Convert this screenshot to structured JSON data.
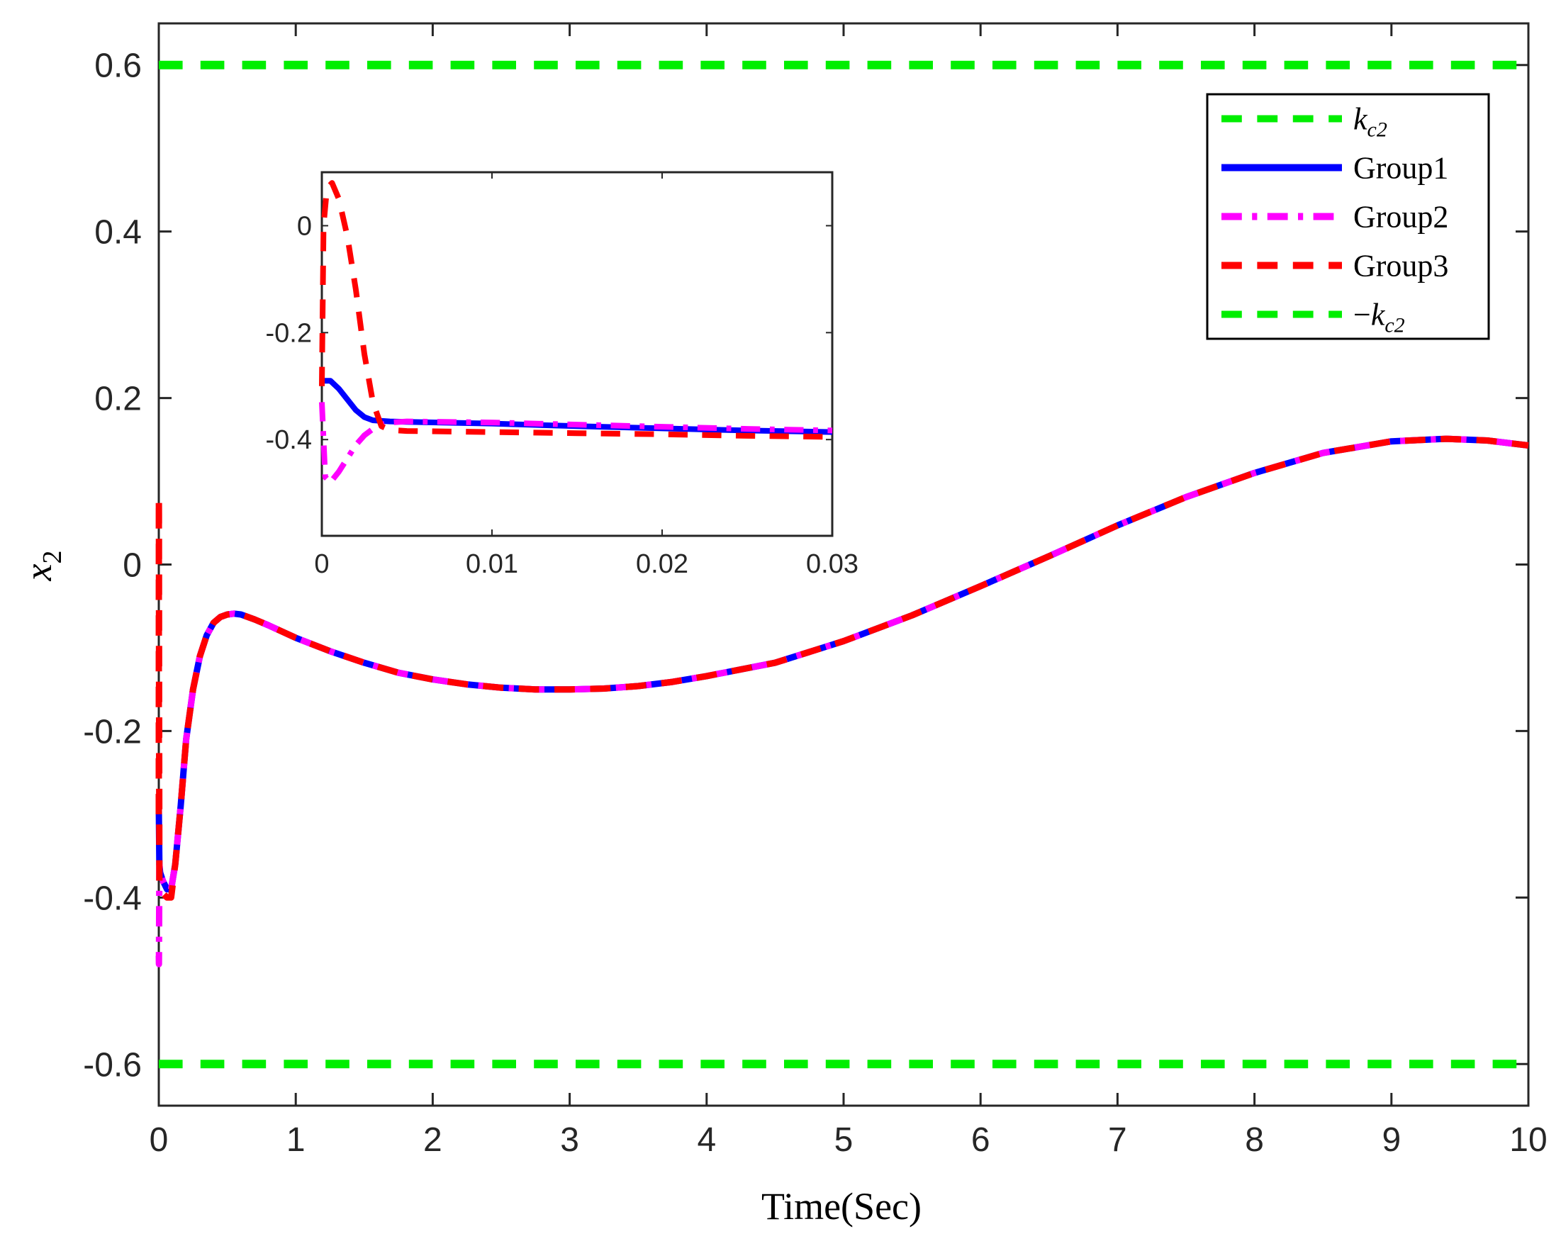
{
  "chart_data": {
    "type": "line",
    "main": {
      "xlabel": "Time(Sec)",
      "ylabel": "x2",
      "xlim": [
        0,
        10
      ],
      "ylim": [
        -0.65,
        0.65
      ],
      "xticks": [
        0,
        1,
        2,
        3,
        4,
        5,
        6,
        7,
        8,
        9,
        10
      ],
      "xtick_labels": [
        "0",
        "1",
        "2",
        "3",
        "4",
        "5",
        "6",
        "7",
        "8",
        "9",
        "10"
      ],
      "yticks": [
        0.6,
        0.4,
        0.2,
        0,
        -0.2,
        -0.4,
        -0.6
      ],
      "ytick_labels": [
        "0.6",
        "0.4",
        "0.2",
        "0",
        "-0.2",
        "-0.4",
        "-0.6"
      ],
      "grid": false,
      "legend_position": "top-right",
      "bounds": [
        {
          "name": "k_c2",
          "value": 0.6,
          "color": "#00ee00",
          "style": "dashed"
        },
        {
          "name": "-k_c2",
          "value": -0.6,
          "color": "#00ee00",
          "style": "dashed"
        }
      ],
      "series": [
        {
          "name": "Group1",
          "color": "#0000ff",
          "style": "solid",
          "x": [
            0,
            0.004,
            0.01,
            0.03,
            0.06,
            0.09,
            0.12,
            0.16,
            0.2,
            0.25,
            0.3,
            0.35,
            0.4,
            0.45,
            0.5,
            0.55,
            0.6,
            0.65,
            0.7,
            0.8,
            1.0,
            1.25,
            1.5,
            1.75,
            2.0,
            2.25,
            2.5,
            2.75,
            3.0,
            3.25,
            3.5,
            3.75,
            4.0,
            4.5,
            5.0,
            5.5,
            6.0,
            6.5,
            7.0,
            7.5,
            8.0,
            8.5,
            9.0,
            9.4,
            9.7,
            10.0
          ],
          "y": [
            -0.29,
            -0.36,
            -0.37,
            -0.38,
            -0.39,
            -0.39,
            -0.36,
            -0.29,
            -0.21,
            -0.15,
            -0.11,
            -0.085,
            -0.07,
            -0.063,
            -0.06,
            -0.059,
            -0.06,
            -0.063,
            -0.066,
            -0.073,
            -0.088,
            -0.104,
            -0.118,
            -0.13,
            -0.138,
            -0.144,
            -0.148,
            -0.15,
            -0.15,
            -0.149,
            -0.146,
            -0.141,
            -0.134,
            -0.118,
            -0.092,
            -0.061,
            -0.026,
            0.01,
            0.047,
            0.081,
            0.11,
            0.134,
            0.148,
            0.151,
            0.149,
            0.143
          ]
        },
        {
          "name": "Group2",
          "color": "#ff00ff",
          "style": "dash-dot",
          "x": [
            0,
            0.001,
            0.004,
            0.01,
            0.03,
            0.06,
            0.09,
            0.12,
            0.16,
            0.2,
            0.25,
            0.3,
            0.35,
            0.4,
            0.45,
            0.5,
            0.55,
            0.6,
            0.65,
            0.7,
            0.8,
            1.0,
            1.25,
            1.5,
            1.75,
            2.0,
            2.25,
            2.5,
            2.75,
            3.0,
            3.25,
            3.5,
            3.75,
            4.0,
            4.5,
            5.0,
            5.5,
            6.0,
            6.5,
            7.0,
            7.5,
            8.0,
            8.5,
            9.0,
            9.4,
            9.7,
            10.0
          ],
          "y": [
            -0.47,
            -0.48,
            -0.36,
            -0.37,
            -0.38,
            -0.39,
            -0.39,
            -0.36,
            -0.29,
            -0.21,
            -0.15,
            -0.11,
            -0.085,
            -0.07,
            -0.063,
            -0.06,
            -0.059,
            -0.06,
            -0.063,
            -0.066,
            -0.073,
            -0.088,
            -0.104,
            -0.118,
            -0.13,
            -0.138,
            -0.144,
            -0.148,
            -0.15,
            -0.15,
            -0.149,
            -0.146,
            -0.141,
            -0.134,
            -0.118,
            -0.092,
            -0.061,
            -0.026,
            0.01,
            0.047,
            0.081,
            0.11,
            0.134,
            0.148,
            0.151,
            0.149,
            0.143
          ]
        },
        {
          "name": "Group3",
          "color": "#ff0000",
          "style": "dashed",
          "x": [
            0,
            0.0005,
            0.001,
            0.002,
            0.004,
            0.01,
            0.03,
            0.06,
            0.09,
            0.12,
            0.16,
            0.2,
            0.25,
            0.3,
            0.35,
            0.4,
            0.45,
            0.5,
            0.55,
            0.6,
            0.65,
            0.7,
            0.8,
            1.0,
            1.25,
            1.5,
            1.75,
            2.0,
            2.25,
            2.5,
            2.75,
            3.0,
            3.25,
            3.5,
            3.75,
            4.0,
            4.5,
            5.0,
            5.5,
            6.0,
            6.5,
            7.0,
            7.5,
            8.0,
            8.5,
            9.0,
            9.4,
            9.7,
            10.0
          ],
          "y": [
            -0.3,
            0.08,
            0.06,
            -0.15,
            -0.38,
            -0.39,
            -0.395,
            -0.4,
            -0.4,
            -0.36,
            -0.29,
            -0.21,
            -0.15,
            -0.11,
            -0.085,
            -0.07,
            -0.063,
            -0.06,
            -0.059,
            -0.06,
            -0.063,
            -0.066,
            -0.073,
            -0.088,
            -0.104,
            -0.118,
            -0.13,
            -0.138,
            -0.144,
            -0.148,
            -0.15,
            -0.15,
            -0.149,
            -0.146,
            -0.141,
            -0.134,
            -0.118,
            -0.092,
            -0.061,
            -0.026,
            0.01,
            0.047,
            0.081,
            0.11,
            0.134,
            0.148,
            0.151,
            0.149,
            0.143
          ]
        }
      ]
    },
    "inset": {
      "xlim": [
        0,
        0.03
      ],
      "ylim": [
        -0.58,
        0.1
      ],
      "xticks": [
        0,
        0.01,
        0.02,
        0.03
      ],
      "xtick_labels": [
        "0",
        "0.01",
        "0.02",
        "0.03"
      ],
      "yticks": [
        0,
        -0.2,
        -0.4
      ],
      "ytick_labels": [
        "0",
        "-0.2",
        "-0.4"
      ],
      "series": [
        {
          "name": "Group1",
          "color": "#0000ff",
          "style": "solid",
          "x": [
            0,
            0.0005,
            0.001,
            0.0015,
            0.002,
            0.0025,
            0.003,
            0.004,
            0.005,
            0.01,
            0.015,
            0.02,
            0.025,
            0.03
          ],
          "y": [
            -0.29,
            -0.29,
            -0.305,
            -0.325,
            -0.345,
            -0.358,
            -0.364,
            -0.366,
            -0.367,
            -0.37,
            -0.375,
            -0.379,
            -0.383,
            -0.386
          ]
        },
        {
          "name": "Group2",
          "color": "#ff00ff",
          "style": "dash-dot",
          "x": [
            0,
            0.0002,
            0.0005,
            0.001,
            0.0015,
            0.002,
            0.0025,
            0.003,
            0.0035,
            0.004,
            0.005,
            0.01,
            0.015,
            0.02,
            0.025,
            0.03
          ],
          "y": [
            -0.33,
            -0.47,
            -0.48,
            -0.46,
            -0.435,
            -0.41,
            -0.392,
            -0.38,
            -0.372,
            -0.368,
            -0.366,
            -0.368,
            -0.372,
            -0.376,
            -0.38,
            -0.383
          ]
        },
        {
          "name": "Group3",
          "color": "#ff0000",
          "style": "dashed",
          "x": [
            0,
            0.0001,
            0.0003,
            0.0006,
            0.001,
            0.0015,
            0.002,
            0.0025,
            0.003,
            0.0035,
            0.004,
            0.005,
            0.01,
            0.015,
            0.02,
            0.025,
            0.03
          ],
          "y": [
            -0.3,
            0.0,
            0.07,
            0.08,
            0.05,
            -0.02,
            -0.12,
            -0.24,
            -0.33,
            -0.375,
            -0.382,
            -0.384,
            -0.386,
            -0.388,
            -0.39,
            -0.393,
            -0.395
          ]
        }
      ]
    },
    "legend": [
      {
        "label": "k",
        "sub": "c2",
        "prefix": "",
        "color": "#00ee00",
        "style": "dashed"
      },
      {
        "label": "Group1",
        "sub": "",
        "prefix": "",
        "color": "#0000ff",
        "style": "solid"
      },
      {
        "label": "Group2",
        "sub": "",
        "prefix": "",
        "color": "#ff00ff",
        "style": "dash-dot"
      },
      {
        "label": "Group3",
        "sub": "",
        "prefix": "",
        "color": "#ff0000",
        "style": "dashed"
      },
      {
        "label": "k",
        "sub": "c2",
        "prefix": "−",
        "color": "#00ee00",
        "style": "dashed"
      }
    ]
  }
}
